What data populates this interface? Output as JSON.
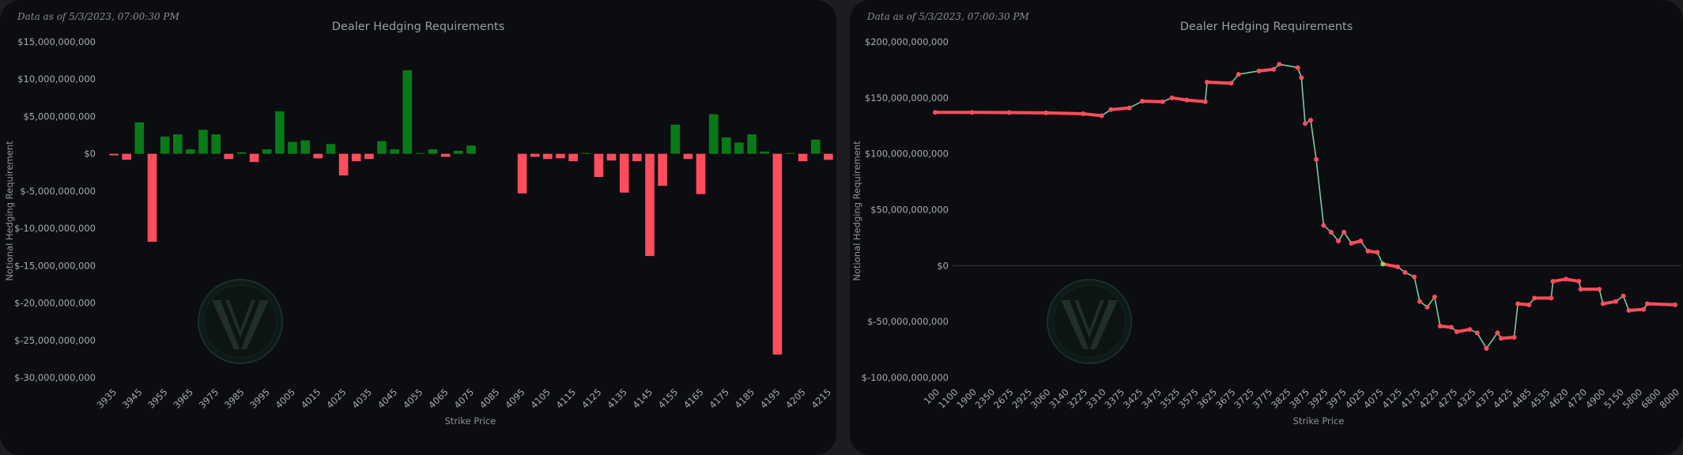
{
  "colors": {
    "panel_bg": "#0c0d10",
    "positive": "#0a7a19",
    "negative": "#ff4d5e",
    "line_connector": "#7fc8a0",
    "zero_line": "#3a3d42",
    "cross_marker": "#9bd15a"
  },
  "icons": [
    "logo-watermark-icon"
  ],
  "chart_data": [
    {
      "type": "bar",
      "stamp": "Data as of 5/3/2023, 07:00:30 PM",
      "title": "Dealer Hedging Requirements",
      "xlabel": "Strike Price",
      "ylabel": "Notional Hedging Requirement",
      "ylim": [
        -30000000000,
        15000000000
      ],
      "yticks": [
        {
          "v": 15000000000,
          "label": "$15,000,000,000"
        },
        {
          "v": 10000000000,
          "label": "$10,000,000,000"
        },
        {
          "v": 5000000000,
          "label": "$5,000,000,000"
        },
        {
          "v": 0,
          "label": "$0"
        },
        {
          "v": -5000000000,
          "label": "$-5,000,000,000"
        },
        {
          "v": -10000000000,
          "label": "$-10,000,000,000"
        },
        {
          "v": -15000000000,
          "label": "$-15,000,000,000"
        },
        {
          "v": -20000000000,
          "label": "$-20,000,000,000"
        },
        {
          "v": -25000000000,
          "label": "$-25,000,000,000"
        },
        {
          "v": -30000000000,
          "label": "$-30,000,000,000"
        }
      ],
      "tick_labels": [
        {
          "i": 0,
          "label": "3935"
        },
        {
          "i": 2,
          "label": "3945"
        },
        {
          "i": 4,
          "label": "3955"
        },
        {
          "i": 6,
          "label": "3965"
        },
        {
          "i": 8,
          "label": "3975"
        },
        {
          "i": 10,
          "label": "3985"
        },
        {
          "i": 12,
          "label": "3995"
        },
        {
          "i": 14,
          "label": "4005"
        },
        {
          "i": 16,
          "label": "4015"
        },
        {
          "i": 18,
          "label": "4025"
        },
        {
          "i": 20,
          "label": "4035"
        },
        {
          "i": 22,
          "label": "4045"
        },
        {
          "i": 24,
          "label": "4055"
        },
        {
          "i": 26,
          "label": "4065"
        },
        {
          "i": 28,
          "label": "4075"
        },
        {
          "i": 30,
          "label": "4085"
        },
        {
          "i": 32,
          "label": "4095"
        },
        {
          "i": 34,
          "label": "4105"
        },
        {
          "i": 36,
          "label": "4115"
        },
        {
          "i": 38,
          "label": "4125"
        },
        {
          "i": 40,
          "label": "4135"
        },
        {
          "i": 42,
          "label": "4145"
        },
        {
          "i": 44,
          "label": "4155"
        },
        {
          "i": 46,
          "label": "4165"
        },
        {
          "i": 48,
          "label": "4175"
        },
        {
          "i": 50,
          "label": "4185"
        },
        {
          "i": 52,
          "label": "4195"
        },
        {
          "i": 54,
          "label": "4205"
        },
        {
          "i": 56,
          "label": "4215"
        }
      ],
      "values": [
        -200000000,
        -800000000,
        4200000000,
        -11800000000,
        2300000000,
        2600000000,
        600000000,
        3200000000,
        2600000000,
        -700000000,
        200000000,
        -1100000000,
        600000000,
        5700000000,
        1600000000,
        1800000000,
        -600000000,
        1300000000,
        -2900000000,
        -1000000000,
        -700000000,
        1700000000,
        600000000,
        11200000000,
        100000000,
        600000000,
        -400000000,
        400000000,
        1100000000,
        0,
        0,
        0,
        -5300000000,
        -400000000,
        -700000000,
        -600000000,
        -1000000000,
        100000000,
        -3100000000,
        -900000000,
        -5200000000,
        -1000000000,
        -13700000000,
        -4300000000,
        3900000000,
        -700000000,
        -5400000000,
        5300000000,
        2200000000,
        1500000000,
        2600000000,
        300000000,
        -26900000000,
        100000000,
        -1000000000,
        1900000000,
        -800000000
      ]
    },
    {
      "type": "line",
      "stamp": "Data as of 5/3/2023, 07:00:30 PM",
      "title": "Dealer Hedging Requirements",
      "xlabel": "Strike Price",
      "ylabel": "Notional Hedging Requirement",
      "ylim": [
        -100000000000,
        200000000000
      ],
      "yticks": [
        {
          "v": 200000000000,
          "label": "$200,000,000,000"
        },
        {
          "v": 150000000000,
          "label": "$150,000,000,000"
        },
        {
          "v": 100000000000,
          "label": "$100,000,000,000"
        },
        {
          "v": 50000000000,
          "label": "$50,000,000,000"
        },
        {
          "v": 0,
          "label": "$0"
        },
        {
          "v": -50000000000,
          "label": "$-50,000,000,000"
        },
        {
          "v": -100000000000,
          "label": "$-100,000,000,000"
        }
      ],
      "x_tick_labels": [
        "100",
        "1100",
        "1900",
        "2350",
        "2675",
        "2925",
        "3060",
        "3140",
        "3225",
        "3310",
        "3375",
        "3425",
        "3475",
        "3525",
        "3575",
        "3625",
        "3675",
        "3725",
        "3775",
        "3825",
        "3875",
        "3925",
        "3975",
        "4025",
        "4075",
        "4125",
        "4175",
        "4225",
        "4275",
        "4325",
        "4375",
        "4425",
        "4485",
        "4535",
        "4620",
        "4720",
        "4900",
        "5150",
        "5800",
        "6800",
        "8000"
      ],
      "points": [
        {
          "xi": 0,
          "y": 137000000000
        },
        {
          "xi": 2,
          "y": 137000000000
        },
        {
          "xi": 4,
          "y": 136800000000
        },
        {
          "xi": 6,
          "y": 136600000000
        },
        {
          "xi": 8,
          "y": 135800000000
        },
        {
          "xi": 9,
          "y": 134000000000
        },
        {
          "xi": 9.5,
          "y": 139500000000
        },
        {
          "xi": 10.5,
          "y": 141000000000
        },
        {
          "xi": 11.2,
          "y": 147000000000
        },
        {
          "xi": 12.3,
          "y": 146500000000
        },
        {
          "xi": 12.8,
          "y": 150000000000
        },
        {
          "xi": 13.6,
          "y": 148000000000
        },
        {
          "xi": 14.6,
          "y": 146500000000
        },
        {
          "xi": 14.7,
          "y": 164000000000
        },
        {
          "xi": 16,
          "y": 163000000000
        },
        {
          "xi": 16.4,
          "y": 171000000000
        },
        {
          "xi": 17.5,
          "y": 174000000000
        },
        {
          "xi": 18.3,
          "y": 175500000000
        },
        {
          "xi": 18.6,
          "y": 180000000000
        },
        {
          "xi": 19.6,
          "y": 177000000000
        },
        {
          "xi": 19.8,
          "y": 168000000000
        },
        {
          "xi": 20,
          "y": 127000000000
        },
        {
          "xi": 20.3,
          "y": 130000000000
        },
        {
          "xi": 20.6,
          "y": 95000000000
        },
        {
          "xi": 21,
          "y": 36000000000
        },
        {
          "xi": 21.4,
          "y": 30000000000
        },
        {
          "xi": 21.8,
          "y": 22000000000
        },
        {
          "xi": 22.1,
          "y": 30000000000
        },
        {
          "xi": 22.5,
          "y": 20000000000
        },
        {
          "xi": 23,
          "y": 22000000000
        },
        {
          "xi": 23.4,
          "y": 13000000000
        },
        {
          "xi": 23.9,
          "y": 12000000000
        },
        {
          "xi": 24.2,
          "y": 1500000000
        },
        {
          "xi": 25,
          "y": -1000000000
        },
        {
          "xi": 25.4,
          "y": -6000000000
        },
        {
          "xi": 25.9,
          "y": -10000000000
        },
        {
          "xi": 26.2,
          "y": -32000000000
        },
        {
          "xi": 26.6,
          "y": -37000000000
        },
        {
          "xi": 27,
          "y": -28000000000
        },
        {
          "xi": 27.3,
          "y": -54000000000
        },
        {
          "xi": 27.9,
          "y": -55000000000
        },
        {
          "xi": 28.2,
          "y": -59000000000
        },
        {
          "xi": 28.9,
          "y": -57000000000
        },
        {
          "xi": 29.3,
          "y": -60000000000
        },
        {
          "xi": 29.8,
          "y": -74000000000
        },
        {
          "xi": 30.4,
          "y": -60000000000
        },
        {
          "xi": 30.6,
          "y": -65000000000
        },
        {
          "xi": 31.3,
          "y": -64000000000
        },
        {
          "xi": 31.5,
          "y": -34000000000
        },
        {
          "xi": 32.1,
          "y": -35000000000
        },
        {
          "xi": 32.4,
          "y": -29000000000
        },
        {
          "xi": 33.3,
          "y": -29000000000
        },
        {
          "xi": 33.4,
          "y": -14000000000
        },
        {
          "xi": 34.1,
          "y": -12000000000
        },
        {
          "xi": 34.8,
          "y": -14000000000
        },
        {
          "xi": 34.9,
          "y": -21000000000
        },
        {
          "xi": 35.9,
          "y": -21000000000
        },
        {
          "xi": 36.1,
          "y": -34000000000
        },
        {
          "xi": 36.8,
          "y": -32000000000
        },
        {
          "xi": 37.2,
          "y": -27000000000
        },
        {
          "xi": 37.5,
          "y": -40000000000
        },
        {
          "xi": 38.3,
          "y": -39000000000
        },
        {
          "xi": 38.5,
          "y": -34000000000
        },
        {
          "xi": 40,
          "y": -35000000000
        }
      ],
      "cross_index": 32
    }
  ]
}
